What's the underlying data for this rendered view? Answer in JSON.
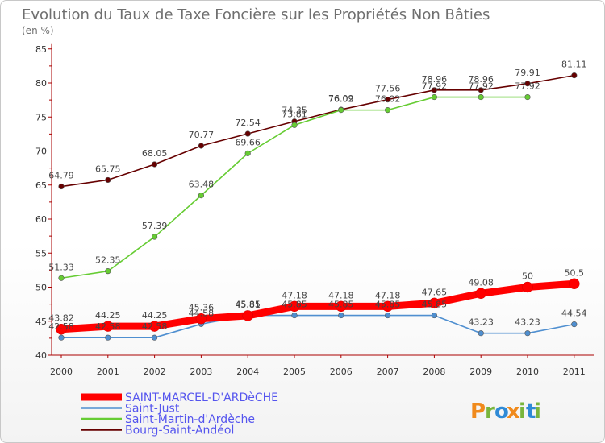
{
  "chart_data": {
    "type": "line",
    "title": "Evolution du Taux de Taxe Foncière sur les Propriétés Non Bâties",
    "subtitle": "(en %)",
    "categories": [
      "2000",
      "2001",
      "2002",
      "2003",
      "2004",
      "2005",
      "2006",
      "2007",
      "2008",
      "2009",
      "2010",
      "2011"
    ],
    "ylim": [
      40,
      85
    ],
    "yticks": [
      40,
      45,
      50,
      55,
      60,
      65,
      70,
      75,
      80,
      85
    ],
    "grid": false,
    "legend_position": "bottom-left",
    "series": [
      {
        "name": "SAINT-MARCEL-D'ARDèCHE",
        "color": "#ff0000",
        "values": [
          43.82,
          44.25,
          44.25,
          45.36,
          45.81,
          47.18,
          47.18,
          47.18,
          47.65,
          49.08,
          50,
          50.5
        ],
        "labels": [
          "43.82",
          "44.25",
          "44.25",
          "45.36",
          "45.81",
          "47.18",
          "47.18",
          "47.18",
          "47.65",
          "49.08",
          "50",
          "50.5"
        ]
      },
      {
        "name": "Saint-Just",
        "color": "#4f8fd0",
        "values": [
          42.58,
          42.58,
          42.58,
          44.58,
          45.85,
          45.85,
          45.85,
          45.85,
          45.85,
          43.23,
          43.23,
          44.54
        ],
        "labels": [
          "42.58",
          "42.58",
          "42.58",
          "44.58",
          "45.85",
          "45.85",
          "45.85",
          "45.85",
          "45.85",
          "43.23",
          "43.23",
          "44.54"
        ]
      },
      {
        "name": "Saint-Martin-d'Ardèche",
        "color": "#66cc33",
        "values": [
          51.33,
          52.35,
          57.39,
          63.48,
          69.66,
          73.81,
          76.02,
          76.02,
          77.92,
          77.92,
          77.92,
          null
        ],
        "labels": [
          "51.33",
          "52.35",
          "57.39",
          "63.48",
          "69.66",
          "73.81",
          "76.02",
          "76.02",
          "77.92",
          "77.92",
          "77.92",
          ""
        ]
      },
      {
        "name": "Bourg-Saint-Andéol",
        "color": "#660000",
        "values": [
          64.79,
          65.75,
          68.05,
          70.77,
          72.54,
          74.35,
          76.09,
          77.56,
          78.96,
          78.96,
          79.91,
          81.11
        ],
        "labels": [
          "64.79",
          "65.75",
          "68.05",
          "70.77",
          "72.54",
          "74.35",
          "76.09",
          "77.56",
          "78.96",
          "78.96",
          "79.91",
          "81.11"
        ]
      }
    ]
  },
  "brand": {
    "letters": [
      "P",
      "r",
      "o",
      "x",
      "i",
      "t",
      "i"
    ],
    "colors": [
      "#f08a1c",
      "#79b53c",
      "#2f8ad6",
      "#f08a1c",
      "#79b53c",
      "#2f8ad6",
      "#79b53c"
    ]
  }
}
